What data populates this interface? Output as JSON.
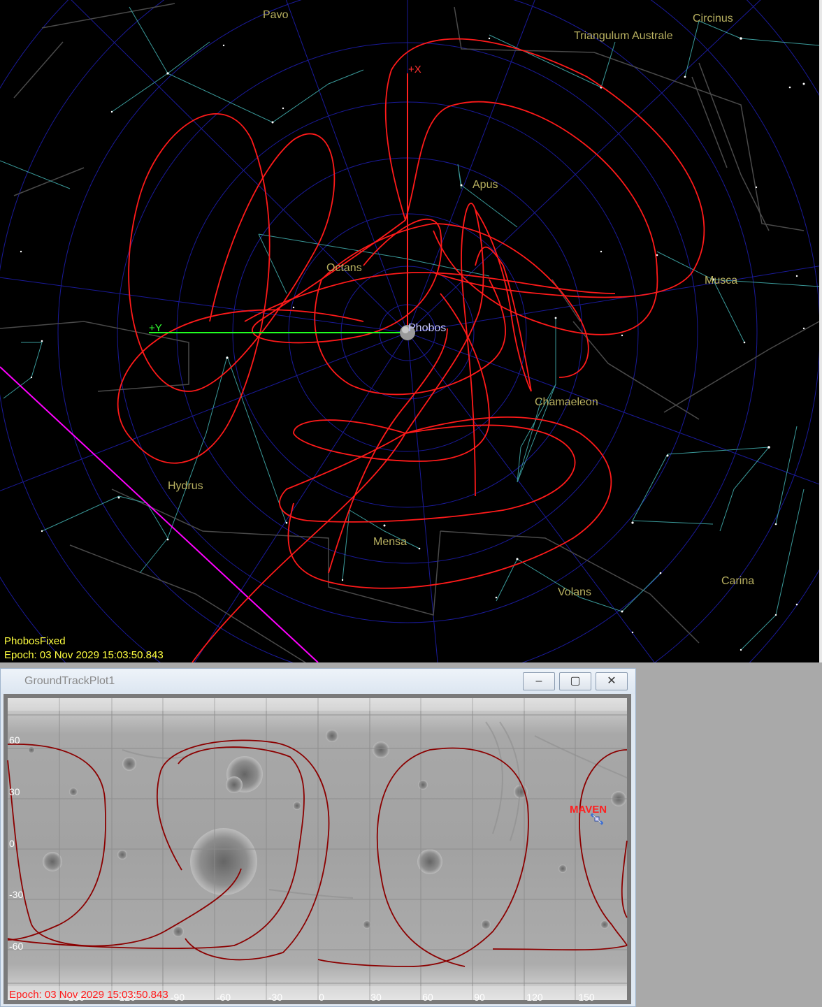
{
  "orbit_view": {
    "frame_label": "PhobosFixed",
    "epoch_label": "Epoch: 03 Nov 2029 15:03:50.843",
    "body_label": "Phobos",
    "axes": {
      "x": "+X",
      "y": "+Y"
    },
    "constellations": [
      "Pavo",
      "Circinus",
      "Triangulum Australe",
      "Apus",
      "Octans",
      "Musca",
      "Chamaeleon",
      "Hydrus",
      "Mensa",
      "Volans",
      "Carina"
    ],
    "colors": {
      "orbit": "#ff1a1a",
      "x_axis": "#ff2020",
      "y_axis": "#20ff20",
      "grid": "#1a1a99",
      "constellation": "#3a9a9a",
      "boundary": "#555555",
      "ecliptic": "#ff00ff"
    }
  },
  "ground_track": {
    "window_title": "GroundTrackPlot1",
    "buttons": {
      "minimize": "‒",
      "maximize": "▢",
      "close": "✕"
    },
    "lat_labels": [
      "60",
      "30",
      "0",
      "-30",
      "-60"
    ],
    "lon_labels": [
      "-150",
      "-120",
      "-90",
      "-60",
      "-30",
      "0",
      "30",
      "60",
      "90",
      "120",
      "150"
    ],
    "spacecraft": "MAVEN",
    "epoch_label": "Epoch: 03 Nov 2029 15:03:50.843",
    "colors": {
      "track": "#8b0000",
      "spacecraft": "#ff2020"
    }
  }
}
